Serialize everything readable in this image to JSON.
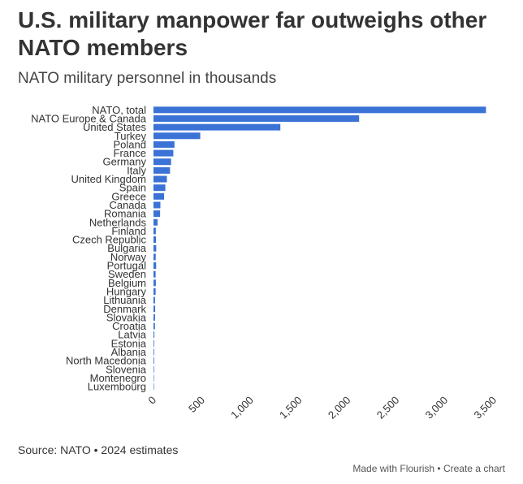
{
  "header": {
    "title": "U.S. military manpower far outweighs other NATO members",
    "subtitle": "NATO military personnel in thousands"
  },
  "footer": {
    "source": "Source: NATO • 2024 estimates",
    "made_with": "Made with Flourish",
    "separator": "•",
    "create": "Create a chart"
  },
  "colors": {
    "bar": "#3a72d6",
    "text": "#333333",
    "axis": "#999999"
  },
  "chart_data": {
    "type": "bar",
    "orientation": "horizontal",
    "title": "U.S. military manpower far outweighs other NATO members",
    "subtitle": "NATO military personnel in thousands",
    "xlabel": "",
    "ylabel": "",
    "xlim": [
      0,
      3500
    ],
    "ticks": [
      0,
      500,
      1000,
      1500,
      2000,
      2500,
      3000,
      3500
    ],
    "tick_labels": [
      "0",
      "500",
      "1,000",
      "1,500",
      "2,000",
      "2,500",
      "3,000",
      "3,500"
    ],
    "grid": false,
    "categories": [
      "NATO, total",
      "NATO Europe & Canada",
      "United States",
      "Turkey",
      "Poland",
      "France",
      "Germany",
      "Italy",
      "United Kingdom",
      "Spain",
      "Greece",
      "Canada",
      "Romania",
      "Netherlands",
      "Finland",
      "Czech Republic",
      "Bulgaria",
      "Norway",
      "Portugal",
      "Sweden",
      "Belgium",
      "Hungary",
      "Lithuania",
      "Denmark",
      "Slovakia",
      "Croatia",
      "Latvia",
      "Estonia",
      "Albania",
      "North Macedonia",
      "Slovenia",
      "Montenegro",
      "Luxembourg"
    ],
    "values": [
      3420,
      2115,
      1305,
      481,
      216,
      204,
      181,
      170,
      138,
      122,
      109,
      71,
      68,
      42,
      24,
      26,
      28,
      23,
      27,
      22,
      24,
      22,
      16,
      17,
      16,
      15,
      9,
      7,
      7,
      7,
      6,
      2,
      1
    ]
  }
}
